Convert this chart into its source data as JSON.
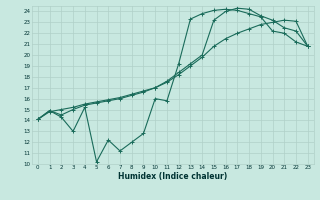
{
  "xlabel": "Humidex (Indice chaleur)",
  "xlim": [
    -0.5,
    23.5
  ],
  "ylim": [
    10,
    24.5
  ],
  "yticks": [
    10,
    11,
    12,
    13,
    14,
    15,
    16,
    17,
    18,
    19,
    20,
    21,
    22,
    23,
    24
  ],
  "xticks": [
    0,
    1,
    2,
    3,
    4,
    5,
    6,
    7,
    8,
    9,
    10,
    11,
    12,
    13,
    14,
    15,
    16,
    17,
    18,
    19,
    20,
    21,
    22,
    23
  ],
  "bg_color": "#c8e8e0",
  "line_color": "#1a6b5a",
  "grid_color": "#b0d0c8",
  "line1_x": [
    0,
    1,
    2,
    3,
    4,
    5,
    6,
    7,
    8,
    9,
    10,
    11,
    12,
    13,
    14,
    15,
    16,
    17,
    18,
    19,
    20,
    21,
    22,
    23
  ],
  "line1_y": [
    14.1,
    14.9,
    14.3,
    13.0,
    15.2,
    10.2,
    12.2,
    11.2,
    12.0,
    12.8,
    16.0,
    15.8,
    19.2,
    23.3,
    23.8,
    24.1,
    24.2,
    24.1,
    23.8,
    23.5,
    22.2,
    22.0,
    21.2,
    20.8
  ],
  "line2_x": [
    0,
    1,
    2,
    3,
    4,
    5,
    6,
    7,
    8,
    9,
    10,
    11,
    12,
    13,
    14,
    15,
    16,
    17,
    18,
    19,
    20,
    21,
    22,
    23
  ],
  "line2_y": [
    14.1,
    14.8,
    15.0,
    15.2,
    15.5,
    15.7,
    15.9,
    16.1,
    16.4,
    16.7,
    17.0,
    17.5,
    18.2,
    19.0,
    19.8,
    20.8,
    21.5,
    22.0,
    22.4,
    22.8,
    23.0,
    23.2,
    23.1,
    20.8
  ],
  "line3_x": [
    0,
    1,
    2,
    3,
    4,
    5,
    6,
    7,
    8,
    9,
    10,
    11,
    12,
    13,
    14,
    15,
    16,
    17,
    18,
    19,
    20,
    21,
    22,
    23
  ],
  "line3_y": [
    14.1,
    14.9,
    14.5,
    15.0,
    15.4,
    15.6,
    15.8,
    16.0,
    16.3,
    16.6,
    17.0,
    17.6,
    18.4,
    19.2,
    20.0,
    23.2,
    24.0,
    24.3,
    24.2,
    23.6,
    23.2,
    22.5,
    22.2,
    20.8
  ]
}
